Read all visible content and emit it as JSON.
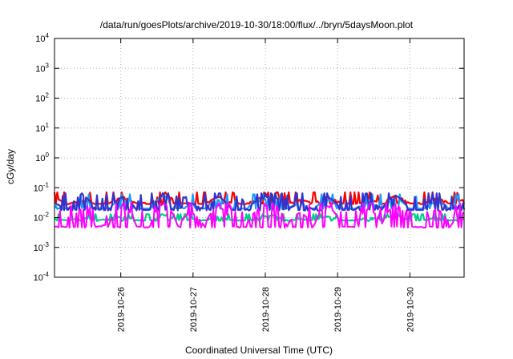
{
  "chart_data": {
    "type": "line",
    "title": "/data/run/goesPlots/archive/2019-10-30/18:00/flux/../bryn/5daysMoon.plot",
    "xlabel": "Coordinated Universal Time (UTC)",
    "ylabel": "cGy/day",
    "yscale": "log",
    "ylim": [
      0.0001,
      10000
    ],
    "xlim": [
      "2019-10-25T02:00",
      "2019-10-30T18:00"
    ],
    "grid": true,
    "x_ticks": [
      "2019-10-26",
      "2019-10-27",
      "2019-10-28",
      "2019-10-29",
      "2019-10-30"
    ],
    "y_ticks": [
      {
        "base": "10",
        "exp": "-4"
      },
      {
        "base": "10",
        "exp": "-3"
      },
      {
        "base": "10",
        "exp": "-2"
      },
      {
        "base": "10",
        "exp": "-1"
      },
      {
        "base": "10",
        "exp": "0"
      },
      {
        "base": "10",
        "exp": "1"
      },
      {
        "base": "10",
        "exp": "2"
      },
      {
        "base": "10",
        "exp": "3"
      },
      {
        "base": "10",
        "exp": "4"
      }
    ],
    "series": [
      {
        "color": "#ff0000",
        "baseline": 0.03,
        "spike_max": 0.07,
        "values_sampled": [
          0.045,
          0.028,
          0.04,
          0.028,
          0.03,
          0.05,
          0.03,
          0.028,
          0.065,
          0.03,
          0.03,
          0.028,
          0.05,
          0.03,
          0.028,
          0.045,
          0.06,
          0.028,
          0.04,
          0.03,
          0.05,
          0.03,
          0.028,
          0.04,
          0.03,
          0.055,
          0.03,
          0.028,
          0.045,
          0.03,
          0.04
        ]
      },
      {
        "color": "#1a9bff",
        "baseline": 0.02,
        "spike_max": 0.06,
        "values_sampled": [
          0.025,
          0.02,
          0.03,
          0.02,
          0.022,
          0.04,
          0.02,
          0.02,
          0.055,
          0.02,
          0.025,
          0.02,
          0.04,
          0.02,
          0.02,
          0.035,
          0.05,
          0.02,
          0.03,
          0.02,
          0.04,
          0.02,
          0.02,
          0.03,
          0.022,
          0.045,
          0.02,
          0.02,
          0.035,
          0.02,
          0.03
        ]
      },
      {
        "color": "#3333cc",
        "baseline": 0.018,
        "spike_max": 0.065,
        "values_sampled": [
          0.03,
          0.018,
          0.06,
          0.018,
          0.02,
          0.05,
          0.018,
          0.018,
          0.06,
          0.018,
          0.03,
          0.018,
          0.05,
          0.018,
          0.018,
          0.04,
          0.055,
          0.018,
          0.03,
          0.018,
          0.05,
          0.018,
          0.018,
          0.035,
          0.02,
          0.055,
          0.018,
          0.018,
          0.04,
          0.018,
          0.03
        ]
      },
      {
        "color": "#00cc88",
        "baseline": 0.008,
        "spike_max": 0.013,
        "values_sampled": [
          0.009,
          0.008,
          0.01,
          0.008,
          0.009,
          0.011,
          0.008,
          0.008,
          0.012,
          0.008,
          0.009,
          0.008,
          0.011,
          0.008,
          0.008,
          0.01,
          0.012,
          0.008,
          0.009,
          0.008,
          0.011,
          0.008,
          0.008,
          0.01,
          0.009,
          0.012,
          0.008,
          0.008,
          0.01,
          0.008,
          0.009
        ]
      },
      {
        "color": "#ff00ff",
        "baseline": 0.0048,
        "spike_max": 0.03,
        "values_sampled": [
          0.005,
          0.0048,
          0.02,
          0.0048,
          0.006,
          0.025,
          0.005,
          0.0048,
          0.03,
          0.005,
          0.015,
          0.0048,
          0.025,
          0.005,
          0.0048,
          0.02,
          0.03,
          0.005,
          0.015,
          0.0048,
          0.025,
          0.005,
          0.0048,
          0.02,
          0.006,
          0.028,
          0.005,
          0.0048,
          0.02,
          0.005,
          0.015
        ]
      }
    ]
  }
}
